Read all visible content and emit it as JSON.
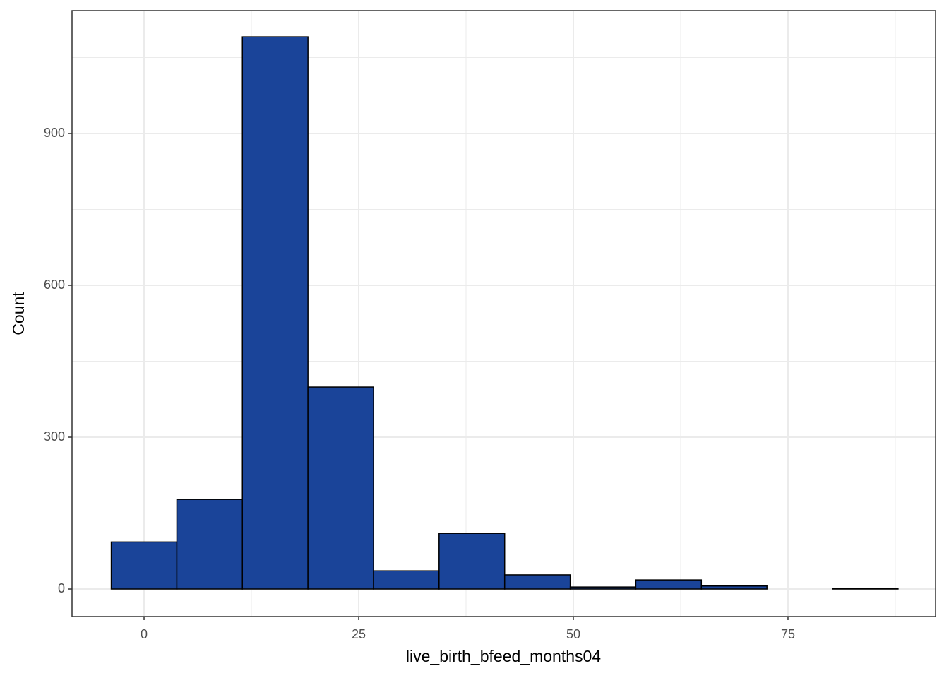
{
  "chart_data": {
    "type": "histogram",
    "x_label": "live_birth_bfeed_months04",
    "y_label": "Count",
    "bins": [
      -3.82,
      3.82,
      11.45,
      19.09,
      26.73,
      34.36,
      42,
      49.64,
      57.27,
      64.91,
      72.55,
      80.18,
      87.82
    ],
    "values": [
      93,
      177,
      1091,
      399,
      36,
      110,
      28,
      4,
      18,
      6,
      0,
      1
    ],
    "color": "#1a4499",
    "xlim": [
      -8.39,
      92.19
    ],
    "ylim": [
      -54.4,
      1142.8
    ],
    "xticks": [
      0,
      25,
      50,
      75
    ],
    "yticks": [
      0,
      300,
      600,
      900
    ],
    "grid": true
  }
}
